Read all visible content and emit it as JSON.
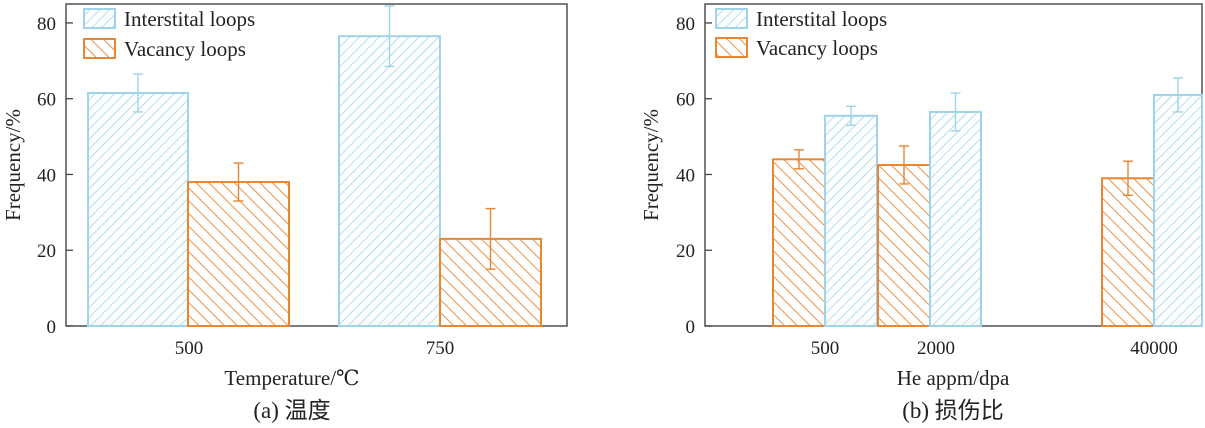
{
  "colors": {
    "interstitial": "#9fd3ea",
    "vacancy": "#e88632",
    "axis": "#444444"
  },
  "chart_data": [
    {
      "type": "bar",
      "caption": "(a) 温度",
      "xlabel": "Temperature/℃",
      "ylabel": "Frequency/%",
      "ylim": [
        0,
        85
      ],
      "yticks": [
        0,
        20,
        40,
        60,
        80
      ],
      "categories": [
        "500",
        "750"
      ],
      "legend": "top-left",
      "series": [
        {
          "name": "Interstital loops",
          "color_key": "interstitial",
          "hatch": "forward",
          "values": [
            61.5,
            76.5
          ],
          "errors": [
            5,
            8
          ]
        },
        {
          "name": "Vacancy loops",
          "color_key": "vacancy",
          "hatch": "back",
          "values": [
            38,
            23
          ],
          "errors": [
            5,
            8
          ]
        }
      ]
    },
    {
      "type": "bar",
      "caption": "(b) 损伤比",
      "xlabel": "He appm/dpa",
      "ylabel": "Frequency/%",
      "ylim": [
        0,
        85
      ],
      "yticks": [
        0,
        20,
        40,
        60,
        80
      ],
      "categories": [
        "500",
        "2000",
        "40000"
      ],
      "legend": "top-left",
      "series": [
        {
          "name": "Interstital loops",
          "color_key": "interstitial",
          "hatch": "forward",
          "values": [
            55.5,
            56.5,
            61
          ],
          "errors": [
            2.5,
            5,
            4.5
          ]
        },
        {
          "name": "Vacancy loops",
          "color_key": "vacancy",
          "hatch": "back",
          "values": [
            44,
            42.5,
            39
          ],
          "errors": [
            2.5,
            5,
            4.5
          ]
        }
      ]
    }
  ]
}
